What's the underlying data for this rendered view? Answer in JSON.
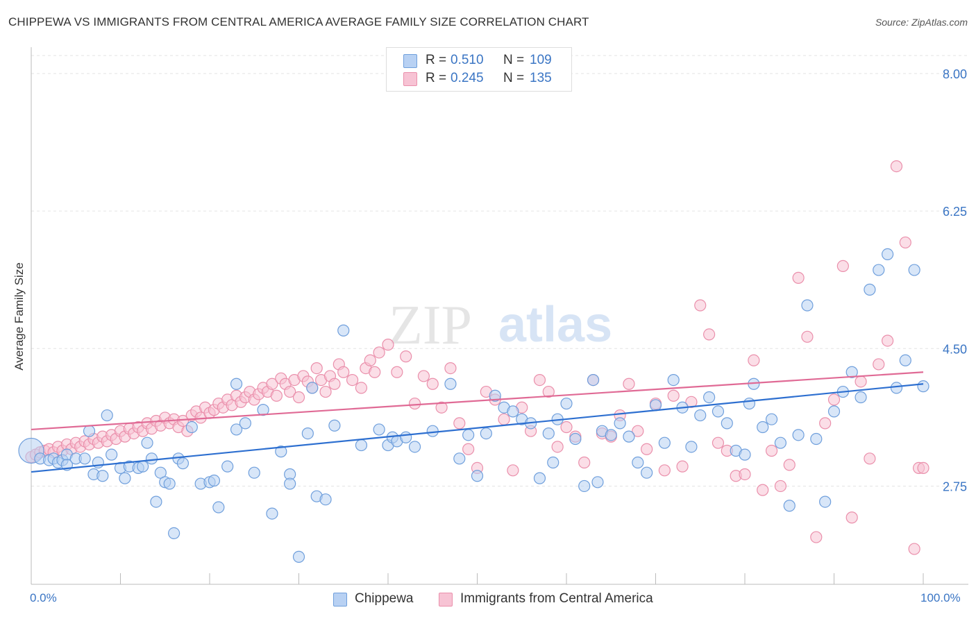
{
  "title": "CHIPPEWA VS IMMIGRANTS FROM CENTRAL AMERICA AVERAGE FAMILY SIZE CORRELATION CHART",
  "source": "Source: ZipAtlas.com",
  "watermark": {
    "zip": "ZIP",
    "atlas": "atlas"
  },
  "legend": {
    "r_label": "R =",
    "n_label": "N =",
    "series": [
      {
        "r": "0.510",
        "n": "109"
      },
      {
        "r": "0.245",
        "n": "135"
      }
    ]
  },
  "bottom_legend": [
    "Chippewa",
    "Immigrants from Central America"
  ],
  "axes": {
    "ylabel": "Average Family Size",
    "x_min_label": "0.0%",
    "x_max_label": "100.0%",
    "y_ticks": [
      "8.00",
      "6.25",
      "4.50",
      "2.75"
    ]
  },
  "colors": {
    "blue_fill": "#b8d1f3",
    "blue_stroke": "#6f9fdc",
    "blue_line": "#2d6fd0",
    "pink_fill": "#f7c3d4",
    "pink_stroke": "#ea8fab",
    "pink_line": "#e06a95",
    "tick_text": "#3a75c4"
  },
  "chart_data": {
    "type": "scatter",
    "title": "CHIPPEWA VS IMMIGRANTS FROM CENTRAL AMERICA AVERAGE FAMILY SIZE CORRELATION CHART",
    "xlabel": "",
    "ylabel": "Average Family Size",
    "xlim": [
      0,
      100
    ],
    "ylim": [
      1.5,
      8.3
    ],
    "y_ticks": [
      8.0,
      6.25,
      4.5,
      2.75
    ],
    "grid": true,
    "legend_placement": "top-center",
    "series": [
      {
        "name": "Chippewa",
        "R": 0.51,
        "N": 109,
        "trend": {
          "x": [
            0,
            100
          ],
          "y": [
            2.93,
            4.05
          ]
        },
        "points": [
          [
            0,
            3.2
          ],
          [
            1,
            3.1
          ],
          [
            2,
            3.08
          ],
          [
            2.5,
            3.1
          ],
          [
            3,
            3.05
          ],
          [
            3.5,
            3.08
          ],
          [
            4,
            3.15
          ],
          [
            4,
            3.02
          ],
          [
            5,
            3.1
          ],
          [
            6,
            3.1
          ],
          [
            6.5,
            3.45
          ],
          [
            7,
            2.9
          ],
          [
            7.5,
            3.05
          ],
          [
            8,
            2.88
          ],
          [
            8.5,
            3.65
          ],
          [
            9,
            3.15
          ],
          [
            10,
            2.98
          ],
          [
            10.5,
            2.85
          ],
          [
            11,
            3.0
          ],
          [
            12,
            2.98
          ],
          [
            12.5,
            3.0
          ],
          [
            13,
            3.3
          ],
          [
            13.5,
            3.1
          ],
          [
            14,
            2.55
          ],
          [
            14.5,
            2.92
          ],
          [
            15,
            2.8
          ],
          [
            15.5,
            2.78
          ],
          [
            16,
            2.15
          ],
          [
            16.5,
            3.1
          ],
          [
            17,
            3.04
          ],
          [
            18,
            3.5
          ],
          [
            19,
            2.78
          ],
          [
            20,
            2.8
          ],
          [
            20.5,
            2.82
          ],
          [
            21,
            2.48
          ],
          [
            22,
            3.0
          ],
          [
            23,
            3.47
          ],
          [
            23,
            4.05
          ],
          [
            24,
            3.55
          ],
          [
            25,
            2.92
          ],
          [
            26,
            3.72
          ],
          [
            27,
            2.4
          ],
          [
            28,
            3.19
          ],
          [
            29,
            2.9
          ],
          [
            29,
            2.78
          ],
          [
            30,
            1.85
          ],
          [
            31,
            3.42
          ],
          [
            31.5,
            4.0
          ],
          [
            32,
            2.62
          ],
          [
            33,
            2.58
          ],
          [
            34,
            3.52
          ],
          [
            35,
            4.73
          ],
          [
            37,
            3.27
          ],
          [
            39,
            3.47
          ],
          [
            40,
            3.27
          ],
          [
            40.5,
            3.37
          ],
          [
            41,
            3.32
          ],
          [
            42,
            3.37
          ],
          [
            43,
            3.25
          ],
          [
            45,
            3.45
          ],
          [
            47,
            4.05
          ],
          [
            48,
            3.1
          ],
          [
            49,
            3.4
          ],
          [
            50,
            2.88
          ],
          [
            51,
            3.42
          ],
          [
            52,
            3.9
          ],
          [
            53,
            3.75
          ],
          [
            54,
            3.7
          ],
          [
            55,
            3.6
          ],
          [
            56,
            3.55
          ],
          [
            57,
            2.85
          ],
          [
            58,
            3.42
          ],
          [
            58.5,
            3.05
          ],
          [
            59,
            3.6
          ],
          [
            60,
            3.8
          ],
          [
            61,
            3.35
          ],
          [
            62,
            2.75
          ],
          [
            63,
            4.1
          ],
          [
            63.5,
            2.8
          ],
          [
            64,
            3.45
          ],
          [
            65,
            3.4
          ],
          [
            66,
            3.55
          ],
          [
            67,
            3.38
          ],
          [
            68,
            3.05
          ],
          [
            69,
            2.92
          ],
          [
            70,
            3.78
          ],
          [
            71,
            3.3
          ],
          [
            72,
            4.1
          ],
          [
            73,
            3.75
          ],
          [
            74,
            3.25
          ],
          [
            75,
            3.65
          ],
          [
            76,
            3.88
          ],
          [
            77,
            3.7
          ],
          [
            78,
            3.55
          ],
          [
            79,
            3.2
          ],
          [
            80,
            3.15
          ],
          [
            80.5,
            3.8
          ],
          [
            81,
            4.05
          ],
          [
            82,
            3.5
          ],
          [
            83,
            3.6
          ],
          [
            84,
            3.3
          ],
          [
            85,
            2.5
          ],
          [
            86,
            3.4
          ],
          [
            87,
            5.05
          ],
          [
            88,
            3.35
          ],
          [
            89,
            2.55
          ],
          [
            90,
            3.7
          ],
          [
            91,
            3.95
          ],
          [
            92,
            4.2
          ],
          [
            93,
            3.88
          ],
          [
            94,
            5.25
          ],
          [
            95,
            5.5
          ],
          [
            96,
            5.7
          ],
          [
            97,
            4.0
          ],
          [
            98,
            4.35
          ],
          [
            99,
            5.5
          ],
          [
            100,
            4.02
          ]
        ]
      },
      {
        "name": "Immigrants from Central America",
        "R": 0.245,
        "N": 135,
        "trend": {
          "x": [
            0,
            100
          ],
          "y": [
            3.47,
            4.2
          ]
        },
        "points": [
          [
            0,
            3.12
          ],
          [
            0.5,
            3.15
          ],
          [
            1,
            3.18
          ],
          [
            1.5,
            3.2
          ],
          [
            2,
            3.22
          ],
          [
            2.5,
            3.18
          ],
          [
            3,
            3.25
          ],
          [
            3.5,
            3.2
          ],
          [
            4,
            3.28
          ],
          [
            4.5,
            3.22
          ],
          [
            5,
            3.3
          ],
          [
            5.5,
            3.25
          ],
          [
            6,
            3.32
          ],
          [
            6.5,
            3.28
          ],
          [
            7,
            3.35
          ],
          [
            7.5,
            3.3
          ],
          [
            8,
            3.38
          ],
          [
            8.5,
            3.32
          ],
          [
            9,
            3.4
          ],
          [
            9.5,
            3.35
          ],
          [
            10,
            3.45
          ],
          [
            10.5,
            3.38
          ],
          [
            11,
            3.48
          ],
          [
            11.5,
            3.42
          ],
          [
            12,
            3.5
          ],
          [
            12.5,
            3.45
          ],
          [
            13,
            3.55
          ],
          [
            13.5,
            3.48
          ],
          [
            14,
            3.58
          ],
          [
            14.5,
            3.52
          ],
          [
            15,
            3.62
          ],
          [
            15.5,
            3.55
          ],
          [
            16,
            3.6
          ],
          [
            16.5,
            3.5
          ],
          [
            17,
            3.58
          ],
          [
            17.5,
            3.45
          ],
          [
            18,
            3.65
          ],
          [
            18.5,
            3.7
          ],
          [
            19,
            3.62
          ],
          [
            19.5,
            3.75
          ],
          [
            20,
            3.68
          ],
          [
            20.5,
            3.72
          ],
          [
            21,
            3.8
          ],
          [
            21.5,
            3.75
          ],
          [
            22,
            3.85
          ],
          [
            22.5,
            3.78
          ],
          [
            23,
            3.9
          ],
          [
            23.5,
            3.82
          ],
          [
            24,
            3.88
          ],
          [
            24.5,
            3.95
          ],
          [
            25,
            3.85
          ],
          [
            25.5,
            3.92
          ],
          [
            26,
            4.0
          ],
          [
            26.5,
            3.95
          ],
          [
            27,
            4.05
          ],
          [
            27.5,
            3.9
          ],
          [
            28,
            4.12
          ],
          [
            28.5,
            4.05
          ],
          [
            29,
            3.95
          ],
          [
            29.5,
            4.1
          ],
          [
            30,
            3.88
          ],
          [
            30.5,
            4.15
          ],
          [
            31,
            4.08
          ],
          [
            31.5,
            4.0
          ],
          [
            32,
            4.25
          ],
          [
            32.5,
            4.1
          ],
          [
            33,
            3.95
          ],
          [
            33.5,
            4.15
          ],
          [
            34,
            4.05
          ],
          [
            34.5,
            4.3
          ],
          [
            35,
            4.2
          ],
          [
            36,
            4.1
          ],
          [
            37,
            4.0
          ],
          [
            37.5,
            4.25
          ],
          [
            38,
            4.35
          ],
          [
            38.5,
            4.2
          ],
          [
            39,
            4.45
          ],
          [
            40,
            4.55
          ],
          [
            41,
            4.2
          ],
          [
            42,
            4.4
          ],
          [
            43,
            3.8
          ],
          [
            44,
            4.15
          ],
          [
            45,
            4.05
          ],
          [
            46,
            3.75
          ],
          [
            47,
            4.25
          ],
          [
            48,
            3.55
          ],
          [
            49,
            3.22
          ],
          [
            50,
            2.98
          ],
          [
            51,
            3.95
          ],
          [
            52,
            3.85
          ],
          [
            53,
            3.6
          ],
          [
            54,
            2.95
          ],
          [
            55,
            3.75
          ],
          [
            56,
            3.45
          ],
          [
            57,
            4.1
          ],
          [
            58,
            3.95
          ],
          [
            59,
            3.25
          ],
          [
            60,
            3.5
          ],
          [
            61,
            3.38
          ],
          [
            62,
            3.05
          ],
          [
            63,
            4.1
          ],
          [
            64,
            3.42
          ],
          [
            65,
            3.38
          ],
          [
            66,
            3.65
          ],
          [
            67,
            4.05
          ],
          [
            68,
            3.45
          ],
          [
            69,
            3.22
          ],
          [
            70,
            3.8
          ],
          [
            71,
            2.95
          ],
          [
            72,
            3.9
          ],
          [
            73,
            3.0
          ],
          [
            74,
            3.82
          ],
          [
            75,
            5.05
          ],
          [
            76,
            4.68
          ],
          [
            77,
            3.3
          ],
          [
            78,
            3.2
          ],
          [
            79,
            2.88
          ],
          [
            80,
            2.9
          ],
          [
            81,
            4.35
          ],
          [
            82,
            2.7
          ],
          [
            83,
            3.2
          ],
          [
            84,
            2.75
          ],
          [
            85,
            3.02
          ],
          [
            86,
            5.4
          ],
          [
            87,
            4.65
          ],
          [
            88,
            2.1
          ],
          [
            89,
            3.55
          ],
          [
            90,
            3.85
          ],
          [
            91,
            5.55
          ],
          [
            92,
            2.35
          ],
          [
            93,
            4.08
          ],
          [
            94,
            3.1
          ],
          [
            95,
            4.3
          ],
          [
            96,
            4.6
          ],
          [
            97,
            6.82
          ],
          [
            98,
            5.85
          ],
          [
            99,
            1.95
          ],
          [
            99.5,
            2.98
          ],
          [
            100,
            2.98
          ]
        ]
      }
    ]
  }
}
